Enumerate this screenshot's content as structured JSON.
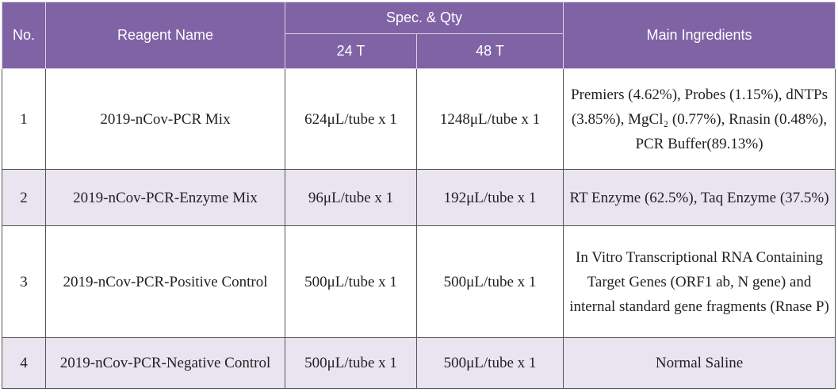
{
  "table": {
    "header": {
      "no": "No.",
      "name": "Reagent Name",
      "spec": "Spec. & Qty",
      "spec_24": "24 T",
      "spec_48": "48 T",
      "ingredients": "Main Ingredients"
    },
    "rows": [
      [
        "1",
        "2019-nCov-PCR Mix",
        "624μL/tube x 1",
        "1248μL/tube x 1",
        "Premiers (4.62%), Probes (1.15%), dNTPs (3.85%), MgCl₂ (0.77%), Rnasin (0.48%), PCR Buffer(89.13%)"
      ],
      [
        "2",
        "2019-nCov-PCR-Enzyme Mix",
        "96μL/tube x 1",
        "192μL/tube x 1",
        "RT Enzyme (62.5%), Taq Enzyme (37.5%)"
      ],
      [
        "3",
        "2019-nCov-PCR-Positive Control",
        "500μL/tube x 1",
        "500μL/tube x 1",
        "In Vitro Transcriptional RNA Containing Target Genes (ORF1 ab, N gene) and internal standard gene fragments (Rnase P)"
      ],
      [
        "4",
        "2019-nCov-PCR-Negative Control",
        "500μL/tube x 1",
        "500μL/tube x 1",
        "Normal Saline"
      ]
    ]
  }
}
